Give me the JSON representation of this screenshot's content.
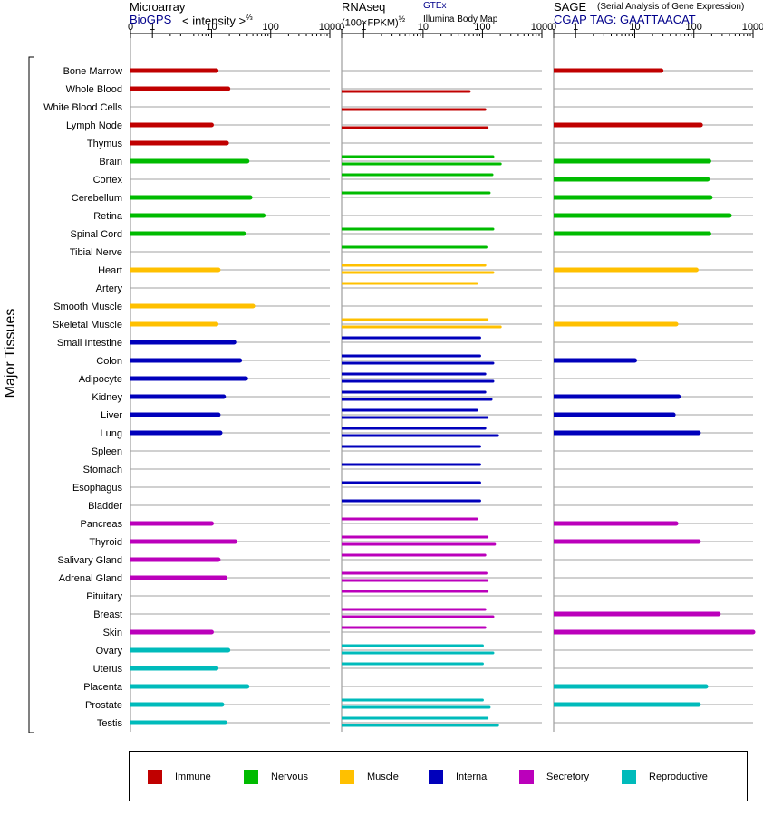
{
  "panels": [
    {
      "id": "microarray",
      "title": "Microarray",
      "subtitle": "BioGPS",
      "unit_text": "< intensity >",
      "unit_exp": "⅔",
      "ticks": [
        "0",
        "1",
        "10",
        "100",
        "1000"
      ],
      "xlim": [
        0,
        1000
      ]
    },
    {
      "id": "rnaseq",
      "title": "RNAseq",
      "unit_text": "(100×FPKM)",
      "unit_exp": "½",
      "source_top": "GTEx",
      "source_bottom": "Illumina Body Map",
      "ticks": [
        "0",
        "1",
        "10",
        "100",
        "1000"
      ],
      "xlim": [
        0,
        1000
      ]
    },
    {
      "id": "sage",
      "title": "SAGE",
      "note": "(Serial Analysis of Gene Expression)",
      "subtitle": "CGAP  TAG: GAATTAACAT",
      "ticks": [
        "0",
        "1",
        "10",
        "100",
        "1000"
      ],
      "xlim": [
        0,
        1000
      ]
    }
  ],
  "y_axis_label": "Major Tissues",
  "legend": [
    {
      "name": "Immune",
      "color": "#c00000"
    },
    {
      "name": "Nervous",
      "color": "#00bb00"
    },
    {
      "name": "Muscle",
      "color": "#ffc000"
    },
    {
      "name": "Internal",
      "color": "#0000bb"
    },
    {
      "name": "Secretory",
      "color": "#bb00bb"
    },
    {
      "name": "Reproductive",
      "color": "#00bbbb"
    }
  ],
  "chart_data": {
    "type": "bar",
    "orientation": "horizontal",
    "x_scale": "log",
    "grid": false,
    "legend_position": "bottom",
    "categories": [
      "Bone Marrow",
      "Whole Blood",
      "White Blood Cells",
      "Lymph Node",
      "Thymus",
      "Brain",
      "Cortex",
      "Cerebellum",
      "Retina",
      "Spinal Cord",
      "Tibial Nerve",
      "Heart",
      "Artery",
      "Smooth Muscle",
      "Skeletal Muscle",
      "Small Intestine",
      "Colon",
      "Adipocyte",
      "Kidney",
      "Liver",
      "Lung",
      "Spleen",
      "Stomach",
      "Esophagus",
      "Bladder",
      "Pancreas",
      "Thyroid",
      "Salivary Gland",
      "Adrenal Gland",
      "Pituitary",
      "Breast",
      "Skin",
      "Ovary",
      "Uterus",
      "Placenta",
      "Prostate",
      "Testis"
    ],
    "groups": [
      "Immune",
      "Immune",
      "Immune",
      "Immune",
      "Immune",
      "Nervous",
      "Nervous",
      "Nervous",
      "Nervous",
      "Nervous",
      "Nervous",
      "Muscle",
      "Muscle",
      "Muscle",
      "Muscle",
      "Internal",
      "Internal",
      "Internal",
      "Internal",
      "Internal",
      "Internal",
      "Internal",
      "Internal",
      "Internal",
      "Internal",
      "Secretory",
      "Secretory",
      "Secretory",
      "Secretory",
      "Secretory",
      "Secretory",
      "Secretory",
      "Reproductive",
      "Reproductive",
      "Reproductive",
      "Reproductive",
      "Reproductive"
    ],
    "series": [
      {
        "name": "Microarray",
        "values": [
          12,
          19,
          null,
          10,
          18,
          40,
          null,
          45,
          75,
          35,
          null,
          13,
          null,
          50,
          12,
          24,
          30,
          38,
          16,
          13,
          14,
          null,
          null,
          null,
          null,
          10,
          25,
          13,
          17,
          null,
          null,
          10,
          19,
          12,
          40,
          15,
          17
        ]
      },
      {
        "name": "GTEx",
        "values": [
          null,
          null,
          null,
          null,
          null,
          150,
          145,
          130,
          null,
          150,
          115,
          110,
          80,
          null,
          120,
          90,
          90,
          110,
          110,
          80,
          110,
          90,
          90,
          90,
          90,
          80,
          120,
          110,
          115,
          120,
          110,
          110,
          100,
          100,
          null,
          100,
          120
        ]
      },
      {
        "name": "Illumina Body Map",
        "values": [
          null,
          60,
          110,
          120,
          null,
          200,
          null,
          null,
          null,
          null,
          null,
          150,
          null,
          null,
          200,
          null,
          150,
          150,
          140,
          120,
          180,
          null,
          null,
          null,
          null,
          null,
          160,
          null,
          120,
          null,
          150,
          null,
          150,
          null,
          null,
          130,
          180
        ]
      },
      {
        "name": "SAGE",
        "values": [
          28,
          null,
          null,
          130,
          null,
          180,
          170,
          190,
          400,
          180,
          null,
          110,
          null,
          null,
          50,
          null,
          10,
          null,
          55,
          45,
          120,
          null,
          null,
          null,
          null,
          50,
          120,
          null,
          null,
          null,
          260,
          1000,
          null,
          null,
          160,
          120,
          null
        ]
      }
    ]
  }
}
